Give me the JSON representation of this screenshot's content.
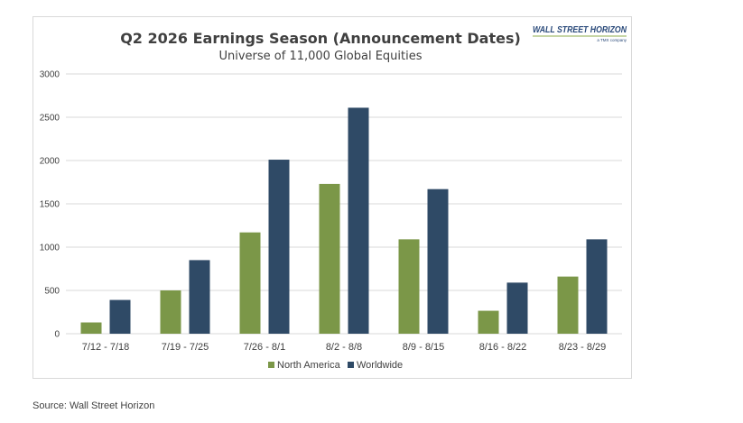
{
  "logo": {
    "name": "WALL STREET HORIZON",
    "sub": "a TMX company"
  },
  "source": "Source: Wall Street Horizon",
  "colors": {
    "north_america": "#7b9748",
    "worldwide": "#2f4a66",
    "grid": "#d9d9d9",
    "text": "#404040"
  },
  "chart_data": {
    "type": "bar",
    "title": "Q2 2026 Earnings Season (Announcement Dates)",
    "subtitle": "Universe of 11,000 Global Equities",
    "categories": [
      "7/12 - 7/18",
      "7/19 - 7/25",
      "7/26 - 8/1",
      "8/2 - 8/8",
      "8/9 - 8/15",
      "8/16 - 8/22",
      "8/23 - 8/29"
    ],
    "series": [
      {
        "name": "North America",
        "values": [
          130,
          500,
          1170,
          1730,
          1090,
          265,
          660
        ]
      },
      {
        "name": "Worldwide",
        "values": [
          390,
          850,
          2010,
          2610,
          1670,
          590,
          1090
        ]
      }
    ],
    "ylim": [
      0,
      3000
    ],
    "yticks": [
      "0",
      "500",
      "1000",
      "1500",
      "2000",
      "2500",
      "3000"
    ],
    "grid": true,
    "legend": "bottom"
  }
}
